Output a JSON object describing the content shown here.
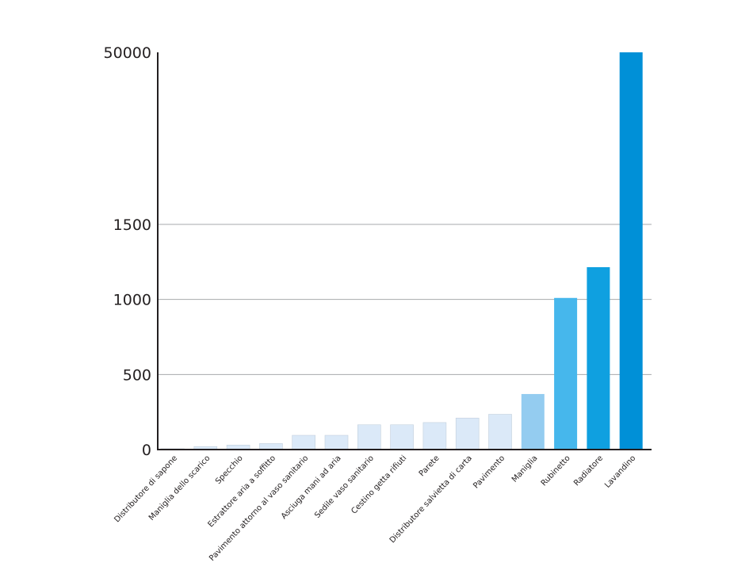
{
  "chart_data": {
    "type": "bar",
    "title": "",
    "xlabel": "",
    "ylabel": "",
    "ylim": [
      0,
      50000
    ],
    "yticks": [
      {
        "value": 0,
        "label": "0"
      },
      {
        "value": 500,
        "label": "500"
      },
      {
        "value": 1000,
        "label": "1000"
      },
      {
        "value": 1500,
        "label": "1500"
      },
      {
        "value": 50000,
        "label": "50000"
      }
    ],
    "y_scale": "broken: linear 0–1500, then compressed segment up to 50000",
    "grid": "horizontal at 500, 1000, 1500",
    "legend": "none",
    "categories": [
      "Distributore di sapone",
      "Maniglia dello scarico",
      "Specchio",
      "Estrattore aria a soffitto",
      "Pavimento attorno al vaso sanitario",
      "Asciuga mani ad aria",
      "Sedile vaso sanitario",
      "Cestino getta rifiuti",
      "Parete",
      "Distributore salvietta di carta",
      "Pavimento",
      "Maniglia",
      "Rubinetto",
      "Radiatore",
      "Lavandino"
    ],
    "values": [
      5,
      20,
      30,
      40,
      95,
      95,
      165,
      165,
      180,
      210,
      235,
      370,
      1010,
      1215,
      50000
    ],
    "colors": [
      "#dbe9f8",
      "#dbe9f8",
      "#dbe9f8",
      "#dbe9f8",
      "#dbe9f8",
      "#dbe9f8",
      "#dbe9f8",
      "#dbe9f8",
      "#dbe9f8",
      "#dbe9f8",
      "#dbe9f8",
      "#94ccf0",
      "#46b7ec",
      "#0fa0e0",
      "#0090d7"
    ]
  }
}
